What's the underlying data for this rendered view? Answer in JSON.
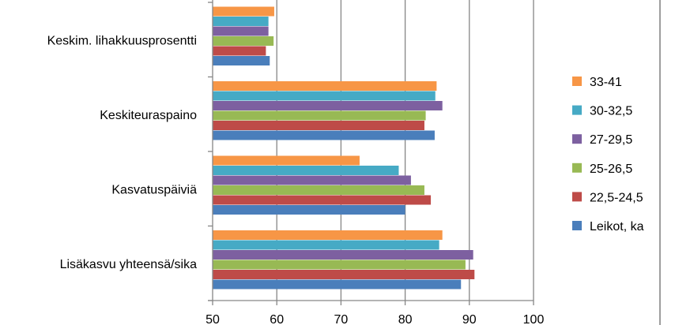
{
  "chart_data": {
    "type": "bar",
    "orientation": "horizontal",
    "categories": [
      "Keskim. lihakkuusprosentti",
      "Keskiteuraspaino",
      "Kasvatuspäiviä",
      "Lisäkasvu yhteensä/sika"
    ],
    "series": [
      {
        "name": "Leikot, ka",
        "color": "#4a7ebb",
        "values": [
          58.9,
          84.6,
          80.0,
          88.7
        ]
      },
      {
        "name": "22,5-24,5",
        "color": "#be4b48",
        "values": [
          58.3,
          83.0,
          84.0,
          90.8
        ]
      },
      {
        "name": "25-26,5",
        "color": "#98b954",
        "values": [
          59.5,
          83.2,
          83.0,
          89.4
        ]
      },
      {
        "name": "27-29,5",
        "color": "#7d60a0",
        "values": [
          58.7,
          85.8,
          80.9,
          90.6
        ]
      },
      {
        "name": "30-32,5",
        "color": "#46aac5",
        "values": [
          58.7,
          84.7,
          79.0,
          85.3
        ]
      },
      {
        "name": "33-41",
        "color": "#f79646",
        "values": [
          59.6,
          84.9,
          72.9,
          85.8
        ]
      }
    ],
    "xlim": [
      50,
      100
    ],
    "xticks": [
      "50",
      "60",
      "70",
      "80",
      "90",
      "100"
    ],
    "grid": true,
    "legend_position": "right"
  }
}
